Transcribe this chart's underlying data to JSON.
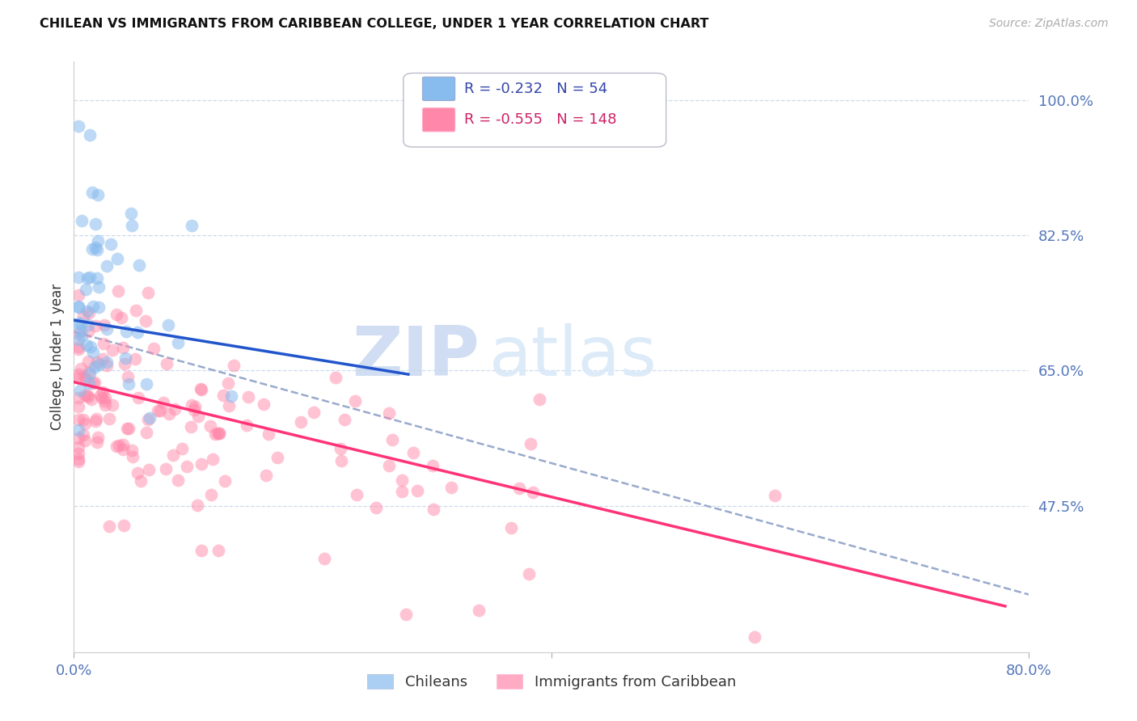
{
  "title": "CHILEAN VS IMMIGRANTS FROM CARIBBEAN COLLEGE, UNDER 1 YEAR CORRELATION CHART",
  "source": "Source: ZipAtlas.com",
  "ylabel": "College, Under 1 year",
  "right_yticks": [
    "100.0%",
    "82.5%",
    "65.0%",
    "47.5%"
  ],
  "right_ytick_vals": [
    1.0,
    0.825,
    0.65,
    0.475
  ],
  "xlim": [
    0.0,
    0.8
  ],
  "ylim": [
    0.285,
    1.05
  ],
  "legend_r_blue": "-0.232",
  "legend_n_blue": "54",
  "legend_r_pink": "-0.555",
  "legend_n_pink": "148",
  "blue_color": "#88BBEE",
  "pink_color": "#FF88AA",
  "blue_line_color": "#2255CC",
  "pink_line_color": "#FF3377",
  "dashed_line_color": "#99AACC",
  "watermark_zip": "ZIP",
  "watermark_atlas": "atlas",
  "blue_label": "Chileans",
  "pink_label": "Immigrants from Caribbean"
}
